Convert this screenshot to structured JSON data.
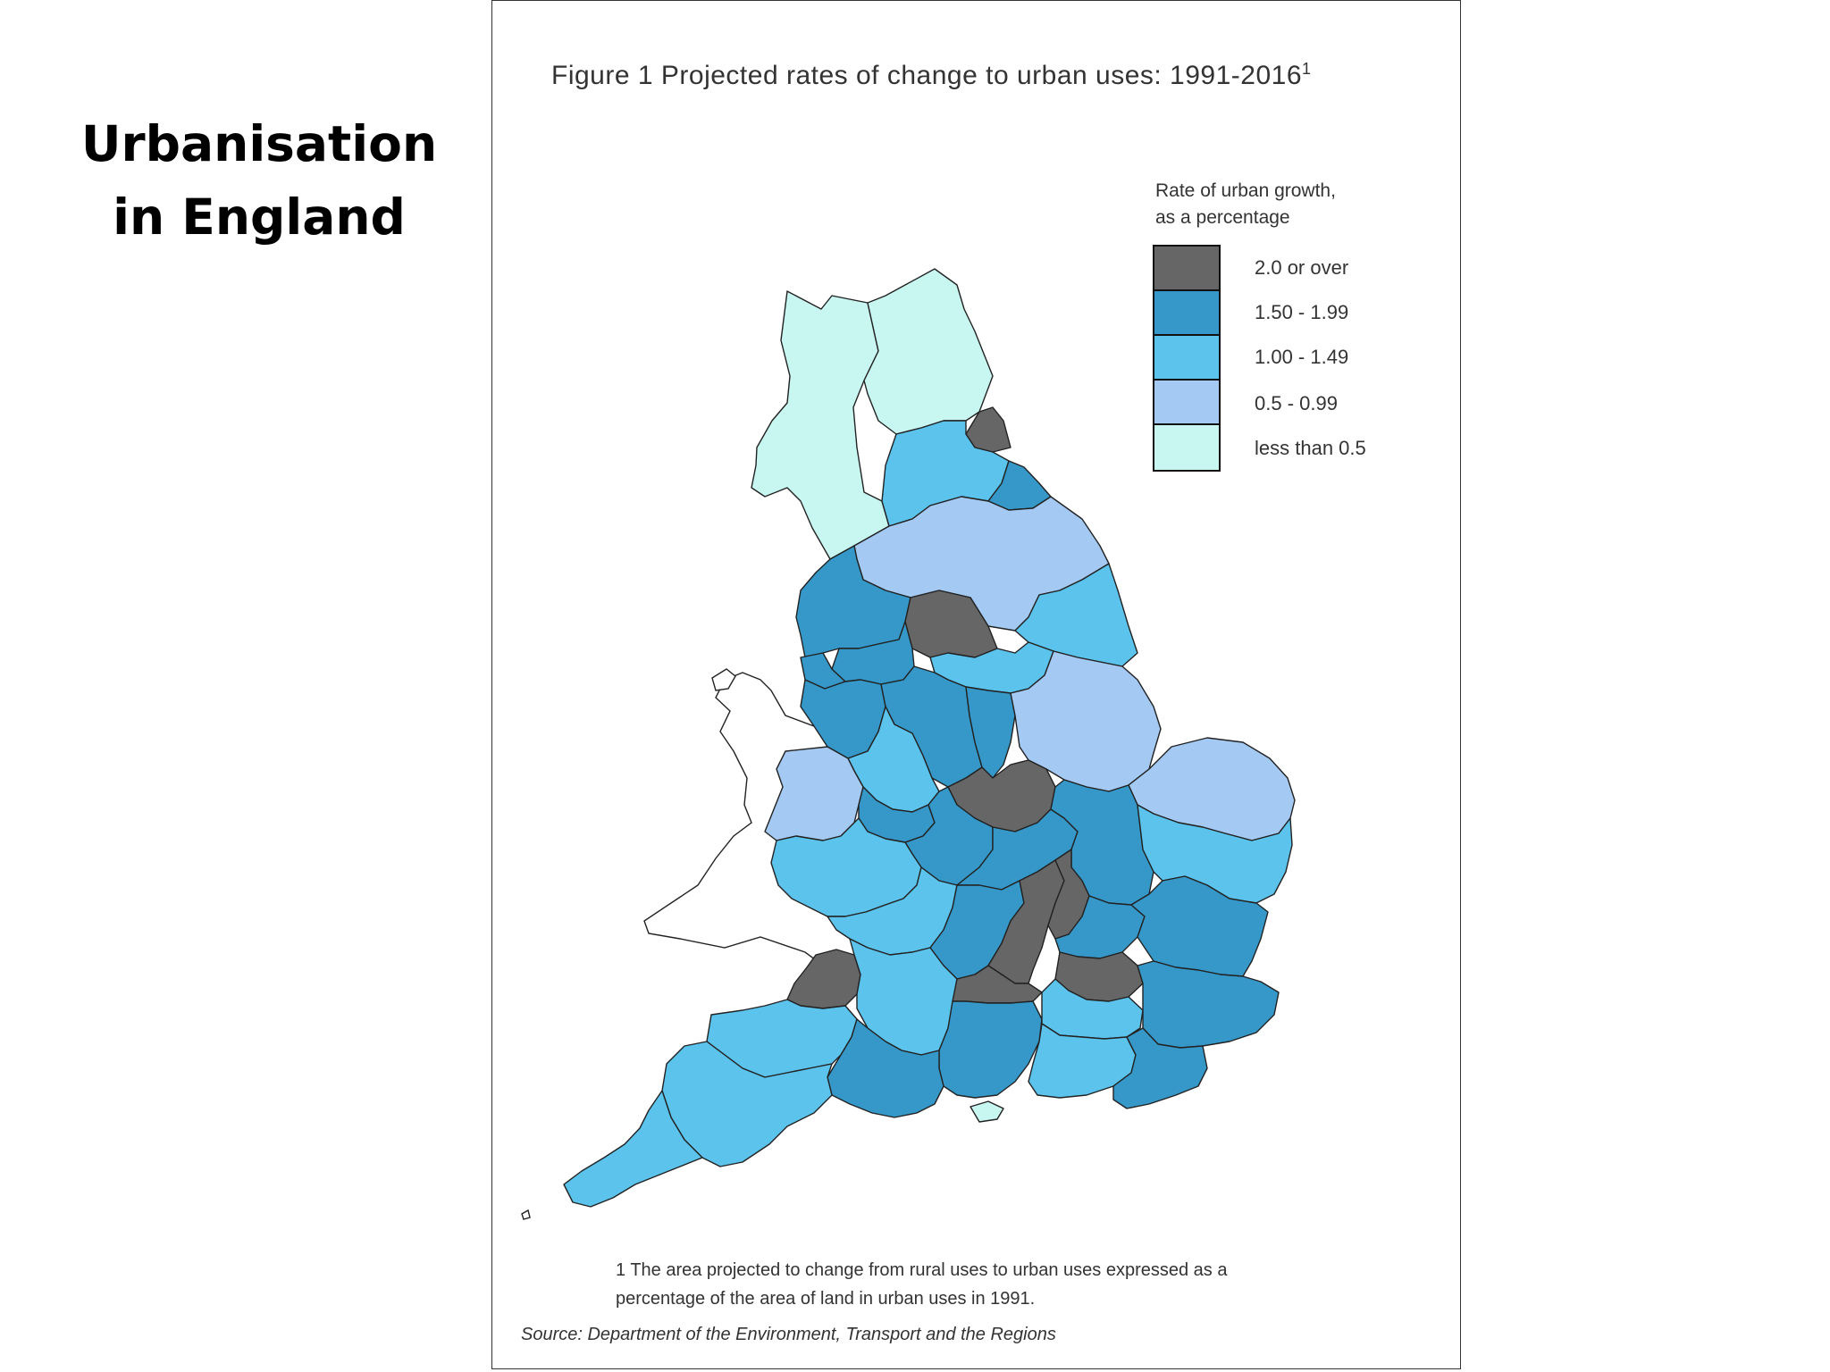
{
  "slide": {
    "title_line1": "Urbanisation",
    "title_line2": "in England"
  },
  "figure": {
    "title": "Figure 1 Projected rates of change to urban uses: 1991-2016",
    "title_superscript": "1",
    "legend_title_line1": "Rate of urban growth,",
    "legend_title_line2": "as a percentage",
    "legend": [
      {
        "label": "2.0 or over",
        "color": "#666666"
      },
      {
        "label": "1.50 - 1.99",
        "color": "#3598c8"
      },
      {
        "label": "1.00 - 1.49",
        "color": "#5bc3ec"
      },
      {
        "label": "0.5 - 0.99",
        "color": "#a4c9f2"
      },
      {
        "label": "less than 0.5",
        "color": "#c8f7f2"
      }
    ],
    "footnote_line1": "1 The area projected to change from rural uses to urban uses expressed as a",
    "footnote_line2": "percentage of the area of land in urban uses in 1991.",
    "source": "Source: Department of the Environment, Transport and the Regions"
  },
  "map": {
    "class_colors": {
      "c2": "#666666",
      "c15": "#3598c8",
      "c10": "#5bc3ec",
      "c05": "#a4c9f2",
      "c0": "#c8f7f2"
    },
    "regions": [
      {
        "name": "cumbria",
        "class": "c0"
      },
      {
        "name": "northumberland",
        "class": "c0"
      },
      {
        "name": "tyne-and-wear",
        "class": "c2"
      },
      {
        "name": "durham",
        "class": "c10"
      },
      {
        "name": "cleveland",
        "class": "c15"
      },
      {
        "name": "north-yorkshire",
        "class": "c05"
      },
      {
        "name": "lancashire",
        "class": "c15"
      },
      {
        "name": "west-yorkshire",
        "class": "c2"
      },
      {
        "name": "humberside",
        "class": "c10"
      },
      {
        "name": "merseyside",
        "class": "c15"
      },
      {
        "name": "greater-manchester",
        "class": "c15"
      },
      {
        "name": "south-yorkshire",
        "class": "c10"
      },
      {
        "name": "cheshire",
        "class": "c15"
      },
      {
        "name": "derbyshire",
        "class": "c15"
      },
      {
        "name": "nottinghamshire",
        "class": "c15"
      },
      {
        "name": "lincolnshire",
        "class": "c05"
      },
      {
        "name": "staffordshire",
        "class": "c10"
      },
      {
        "name": "shropshire",
        "class": "c05"
      },
      {
        "name": "leicestershire",
        "class": "c2"
      },
      {
        "name": "norfolk",
        "class": "c05"
      },
      {
        "name": "west-midlands",
        "class": "c15"
      },
      {
        "name": "warwickshire",
        "class": "c15"
      },
      {
        "name": "northamptonshire",
        "class": "c15"
      },
      {
        "name": "cambridgeshire",
        "class": "c15"
      },
      {
        "name": "suffolk",
        "class": "c10"
      },
      {
        "name": "hereford-and-worcester",
        "class": "c10"
      },
      {
        "name": "gloucestershire",
        "class": "c10"
      },
      {
        "name": "oxfordshire",
        "class": "c15"
      },
      {
        "name": "buckinghamshire",
        "class": "c2"
      },
      {
        "name": "bedfordshire",
        "class": "c2"
      },
      {
        "name": "hertfordshire",
        "class": "c15"
      },
      {
        "name": "essex",
        "class": "c15"
      },
      {
        "name": "avon",
        "class": "c2"
      },
      {
        "name": "wiltshire",
        "class": "c10"
      },
      {
        "name": "berkshire",
        "class": "c2"
      },
      {
        "name": "greater-london",
        "class": "c2"
      },
      {
        "name": "somerset",
        "class": "c10"
      },
      {
        "name": "hampshire",
        "class": "c15"
      },
      {
        "name": "surrey",
        "class": "c10"
      },
      {
        "name": "kent",
        "class": "c15"
      },
      {
        "name": "west-sussex",
        "class": "c10"
      },
      {
        "name": "east-sussex",
        "class": "c15"
      },
      {
        "name": "dorset",
        "class": "c15"
      },
      {
        "name": "isle-of-wight",
        "class": "c0"
      },
      {
        "name": "devon",
        "class": "c10"
      },
      {
        "name": "cornwall",
        "class": "c10"
      }
    ]
  }
}
